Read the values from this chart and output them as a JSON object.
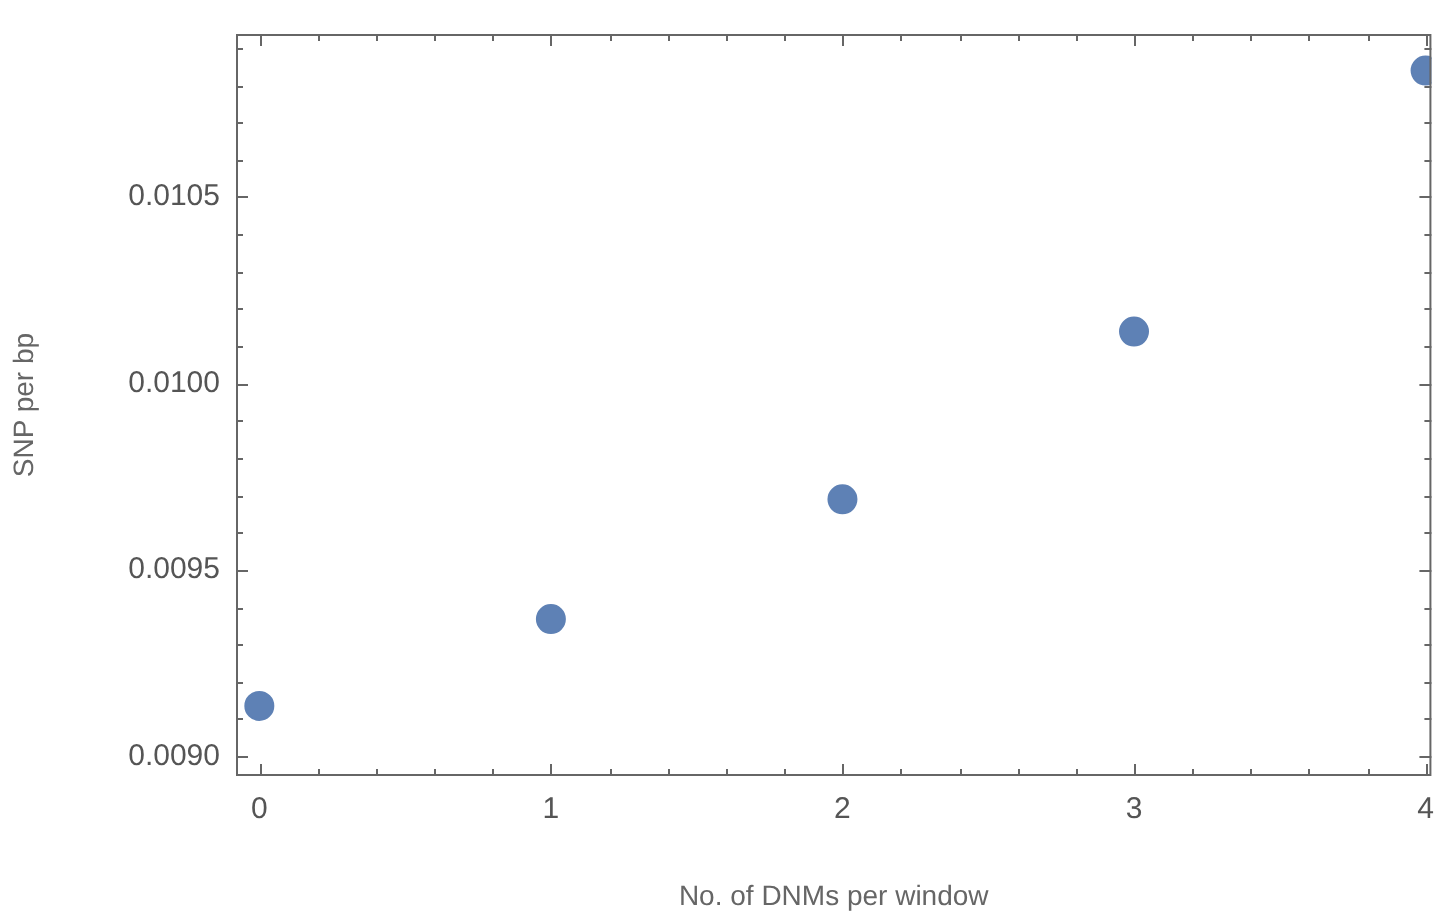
{
  "chart_data": {
    "type": "scatter",
    "xlabel": "No. of DNMs per window",
    "ylabel": "SNP per bp",
    "x": [
      0,
      1,
      2,
      3,
      4
    ],
    "series": [
      {
        "color": "#5e81b5",
        "values": [
          0.009135,
          0.009368,
          0.009689,
          0.010139,
          0.010839
        ]
      }
    ],
    "xlim": [
      -0.08,
      4.02
    ],
    "xticks": [
      0,
      {
        "value": 0.2,
        "label": null
      },
      {
        "value": 0.4,
        "label": null
      },
      {
        "value": 0.6,
        "label": null
      },
      {
        "value": 0.8,
        "label": null
      },
      1,
      {
        "value": 1.2,
        "label": null
      },
      {
        "value": 1.4,
        "label": null
      },
      {
        "value": 1.6,
        "label": null
      },
      {
        "value": 1.8,
        "label": null
      },
      2,
      {
        "value": 2.2,
        "label": null
      },
      {
        "value": 2.4,
        "label": null
      },
      {
        "value": 2.6,
        "label": null
      },
      {
        "value": 2.8,
        "label": null
      },
      3,
      {
        "value": 3.2,
        "label": null
      },
      {
        "value": 3.4,
        "label": null
      },
      {
        "value": 3.6,
        "label": null
      },
      {
        "value": 3.8,
        "label": null
      },
      4
    ],
    "ylim": [
      0.008947,
      0.010937
    ],
    "yticks": [
      {
        "value": 0.009,
        "label": "0.0090"
      },
      {
        "value": 0.0091,
        "label": null
      },
      {
        "value": 0.0092,
        "label": null
      },
      {
        "value": 0.0093,
        "label": null
      },
      {
        "value": 0.0094,
        "label": null
      },
      {
        "value": 0.0095,
        "label": "0.0095"
      },
      {
        "value": 0.0096,
        "label": null
      },
      {
        "value": 0.0097,
        "label": null
      },
      {
        "value": 0.0098,
        "label": null
      },
      {
        "value": 0.0099,
        "label": null
      },
      {
        "value": 0.01,
        "label": "0.0100"
      },
      {
        "value": 0.0101,
        "label": null
      },
      {
        "value": 0.0102,
        "label": null
      },
      {
        "value": 0.0103,
        "label": null
      },
      {
        "value": 0.0104,
        "label": null
      },
      {
        "value": 0.0105,
        "label": "0.0105"
      },
      {
        "value": 0.0106,
        "label": null
      },
      {
        "value": 0.0107,
        "label": null
      },
      {
        "value": 0.0108,
        "label": null
      },
      {
        "value": 0.0109,
        "label": null
      }
    ],
    "grid": false,
    "legend": false,
    "marker": "circle"
  }
}
